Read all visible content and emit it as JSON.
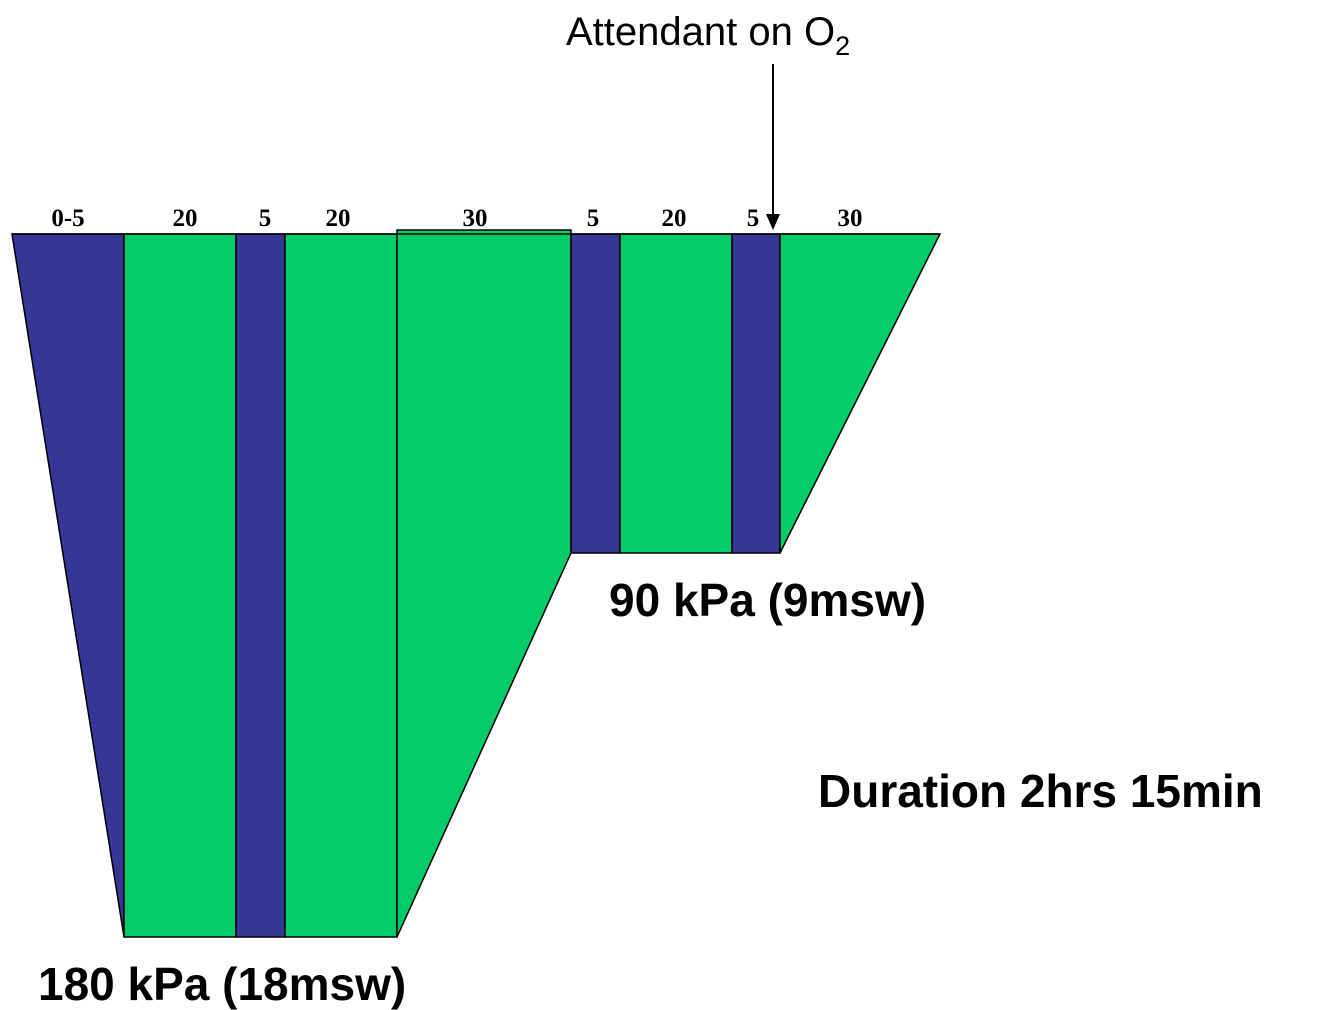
{
  "colors": {
    "air": "#363696",
    "oxygen": "#02CC6A",
    "outline": "#000000",
    "text": "#000000"
  },
  "annotation": {
    "text": "Attendant on O",
    "subscript": "2"
  },
  "segments": [
    {
      "label": "0-5",
      "type": "air",
      "phase": "compression"
    },
    {
      "label": "20",
      "type": "oxygen",
      "phase": "deep"
    },
    {
      "label": "5",
      "type": "air",
      "phase": "deep"
    },
    {
      "label": "20",
      "type": "oxygen",
      "phase": "deep"
    },
    {
      "label": "30",
      "type": "oxygen",
      "phase": "ascent"
    },
    {
      "label": "5",
      "type": "air",
      "phase": "shallow"
    },
    {
      "label": "20",
      "type": "oxygen",
      "phase": "shallow"
    },
    {
      "label": "5",
      "type": "air",
      "phase": "shallow"
    },
    {
      "label": "30",
      "type": "oxygen",
      "phase": "decompression"
    }
  ],
  "depth_labels": {
    "deep": "180 kPa (18msw)",
    "shallow": "90 kPa (9msw)"
  },
  "duration": "Duration 2hrs 15min"
}
